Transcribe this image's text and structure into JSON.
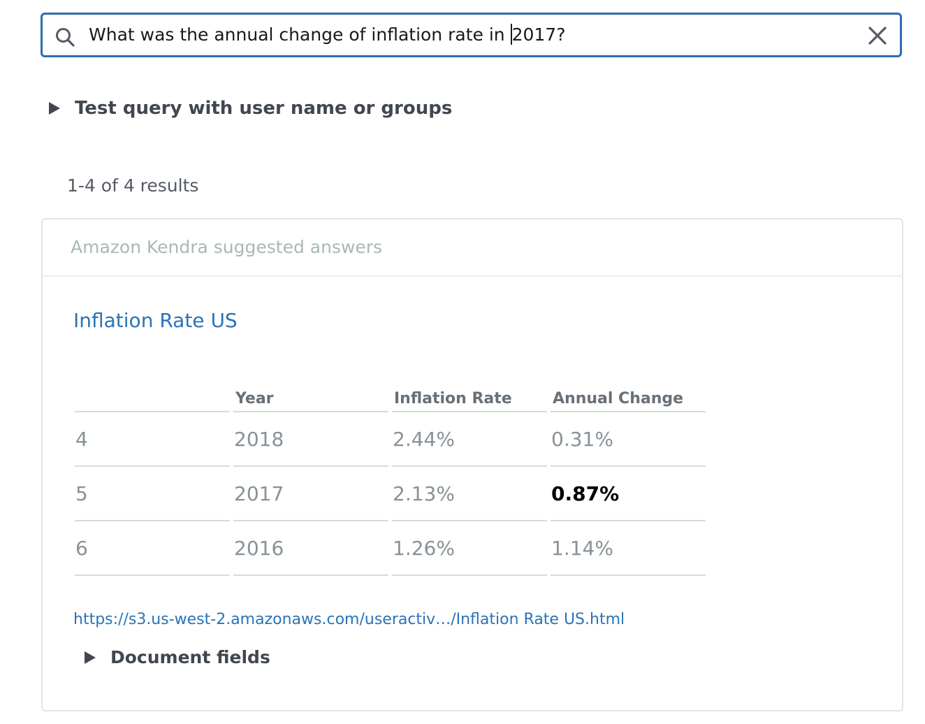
{
  "search": {
    "query_before_cursor": "What was the annual change of inflation rate in ",
    "query_after_cursor": "2017?"
  },
  "test_query": {
    "label": "Test query with user name or groups"
  },
  "results": {
    "count_text": "1-4 of 4 results"
  },
  "suggested_answers": {
    "header": "Amazon Kendra suggested answers",
    "title": "Inflation Rate US",
    "table": {
      "headers": [
        "",
        "Year",
        "Inflation Rate",
        "Annual Change"
      ],
      "rows": [
        [
          "4",
          "2018",
          "2.44%",
          "0.31%"
        ],
        [
          "5",
          "2017",
          "2.13%",
          "0.87%"
        ],
        [
          "6",
          "2016",
          "1.26%",
          "1.14%"
        ]
      ],
      "highlighted_cell": "0.87%"
    },
    "link_text": "https://s3.us-west-2.amazonaws.com/useractiv…/Inflation Rate US.html",
    "document_fields_label": "Document fields"
  },
  "colors": {
    "accent": "#2f6cb3",
    "link": "#2a73b7",
    "muted_text": "#879196"
  },
  "icons": {
    "search": "search-icon",
    "clear": "close-icon",
    "expander": "caret-right-icon"
  }
}
